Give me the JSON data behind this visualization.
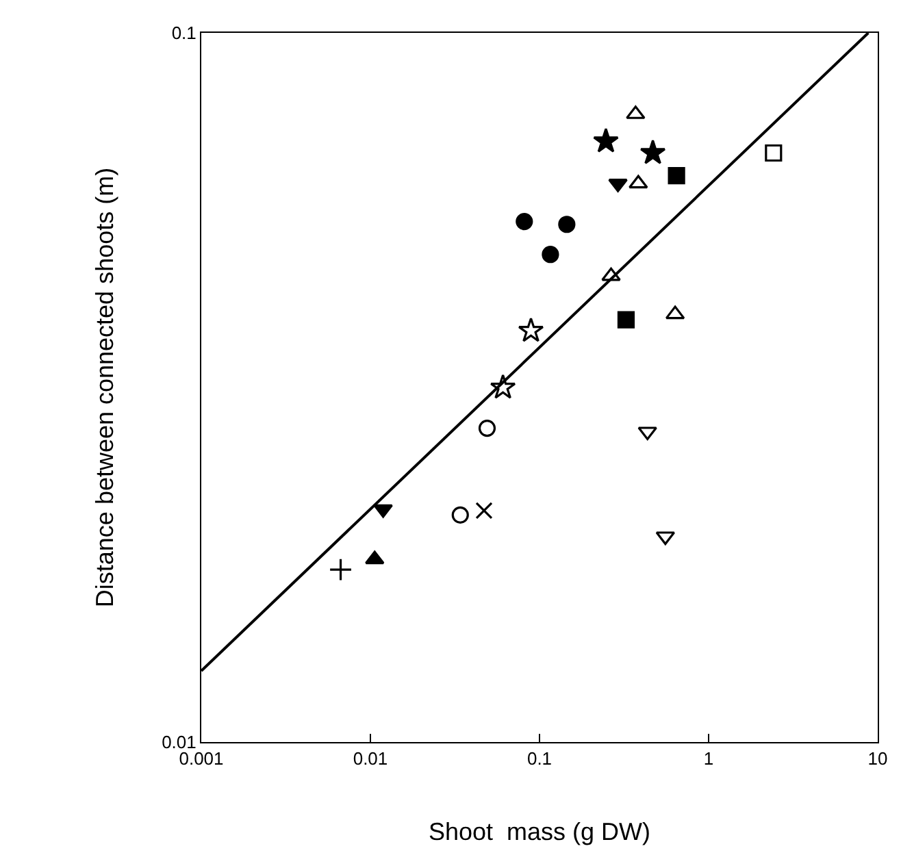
{
  "chart_data": {
    "type": "scatter",
    "xlabel": "Shoot  mass (g DW)",
    "ylabel": "Distance between connected shoots (m)",
    "log": "xy",
    "xlim": [
      0.001,
      10
    ],
    "xticks": [
      0.001,
      0.01,
      0.1,
      1,
      10
    ],
    "ylim": [
      0.01,
      0.1
    ],
    "yticks": [
      0.01,
      0.1
    ],
    "series": [
      {
        "color": "#000000",
        "marker": "triangle-open",
        "x": [
          0.37,
          0.384,
          0.265,
          0.634
        ],
        "values": [
          0.0768,
          0.0613,
          0.0454,
          0.0401
        ]
      },
      {
        "color": "#000000",
        "marker": "star",
        "x": [
          0.247,
          0.468
        ],
        "values": [
          0.0703,
          0.0677
        ]
      },
      {
        "color": "#000000",
        "marker": "square-open",
        "x": [
          2.42
        ],
        "values": [
          0.0677
        ]
      },
      {
        "color": "#000000",
        "marker": "square",
        "x": [
          0.646,
          0.325
        ],
        "values": [
          0.0629,
          0.0394
        ]
      },
      {
        "color": "#000000",
        "marker": "triangle-down",
        "x": [
          0.291,
          0.0119
        ],
        "values": [
          0.0613,
          0.0213
        ]
      },
      {
        "color": "#000000",
        "marker": "circle",
        "x": [
          0.0813,
          0.145,
          0.116
        ],
        "values": [
          0.0542,
          0.0537,
          0.0487
        ]
      },
      {
        "color": "#000000",
        "marker": "star-open",
        "x": [
          0.089,
          0.0608
        ],
        "values": [
          0.038,
          0.0316
        ]
      },
      {
        "color": "#000000",
        "marker": "circle-open",
        "x": [
          0.049,
          0.034
        ],
        "values": [
          0.0277,
          0.0209
        ]
      },
      {
        "color": "#000000",
        "marker": "triangle-down-open",
        "x": [
          0.435,
          0.555
        ],
        "values": [
          0.0274,
          0.0195
        ]
      },
      {
        "color": "#000000",
        "marker": "x",
        "x": [
          0.047
        ],
        "values": [
          0.0212
        ]
      },
      {
        "color": "#000000",
        "marker": "cross",
        "x": [
          0.00667
        ],
        "values": [
          0.0175
        ]
      },
      {
        "color": "#000000",
        "marker": "triangle",
        "x": [
          0.0106
        ],
        "values": [
          0.0181
        ]
      },
      {
        "type": "line",
        "color": "#000000",
        "marker": "none",
        "line_style": "solid",
        "x": [
          0.001,
          8.8
        ],
        "values": [
          0.0126,
          0.1
        ]
      }
    ]
  }
}
